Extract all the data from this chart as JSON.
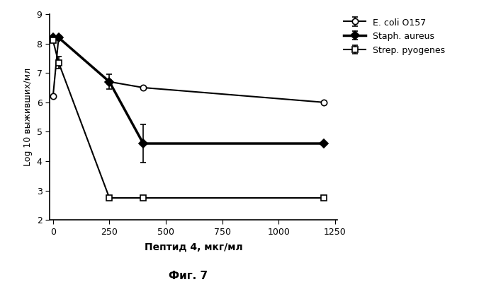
{
  "ecoli": {
    "x": [
      0,
      25,
      250,
      400,
      1200
    ],
    "y": [
      6.2,
      8.2,
      6.7,
      6.5,
      6.0
    ],
    "yerr": [
      0,
      0,
      0,
      0,
      0
    ],
    "label": "E. coli O157",
    "color": "#000000",
    "marker": "o",
    "markersize": 6,
    "linewidth": 1.5,
    "markerfacecolor": "white"
  },
  "staph": {
    "x": [
      0,
      25,
      250,
      400,
      1200
    ],
    "y": [
      8.2,
      8.2,
      6.7,
      4.6,
      4.6
    ],
    "yerr": [
      0,
      0,
      0.25,
      0.65,
      0
    ],
    "label": "Staph. aureus",
    "color": "#000000",
    "marker": "D",
    "markersize": 6,
    "linewidth": 2.5,
    "markerfacecolor": "#000000"
  },
  "strep": {
    "x": [
      0,
      25,
      250,
      400,
      1200
    ],
    "y": [
      8.1,
      7.35,
      2.75,
      2.75,
      2.75
    ],
    "yerr": [
      0,
      0.2,
      0,
      0,
      0
    ],
    "label": "Strep. pyogenes",
    "color": "#000000",
    "marker": "s",
    "markersize": 6,
    "linewidth": 1.5,
    "markerfacecolor": "white"
  },
  "xlabel": "Пептид 4, мкг/мл",
  "ylabel": "Log 10 выживших/мл",
  "title": "Фиг. 7",
  "xlim": [
    -15,
    1260
  ],
  "ylim": [
    2,
    9
  ],
  "xticks": [
    0,
    250,
    500,
    750,
    1000,
    1250
  ],
  "yticks": [
    2,
    3,
    4,
    5,
    6,
    7,
    8,
    9
  ]
}
